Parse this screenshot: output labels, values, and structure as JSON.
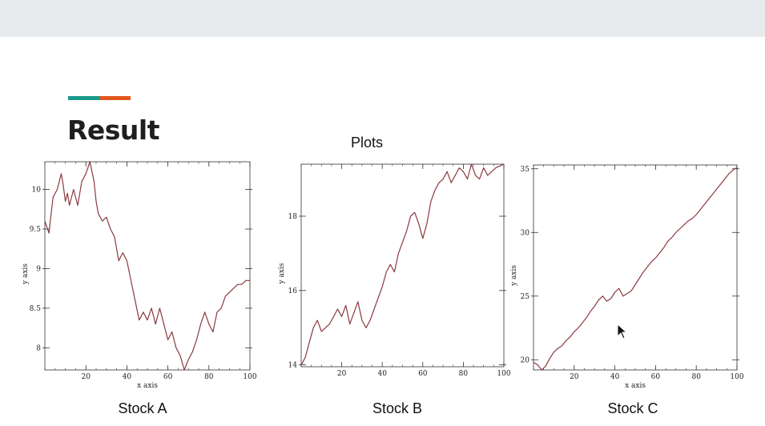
{
  "page": {
    "heading": "Result",
    "plots_title": "Plots",
    "accent_colors": [
      "#1a9a8a",
      "#e2561f"
    ],
    "line_color": "#8b3a3f"
  },
  "charts": [
    {
      "caption": "Stock A",
      "chart_data": {
        "type": "line",
        "xlabel": "x axis",
        "ylabel": "y axis",
        "xlim": [
          0,
          100
        ],
        "ylim": [
          7.72,
          10.35
        ],
        "xticks": [
          20,
          40,
          60,
          80,
          100
        ],
        "yticks": [
          8,
          8.5,
          9,
          9.5,
          10
        ],
        "ytick_labels": [
          "8",
          "8.5",
          "9",
          "9.5",
          "10"
        ],
        "x": [
          0,
          2,
          4,
          6,
          8,
          9,
          10,
          11,
          12,
          14,
          16,
          18,
          20,
          22,
          24,
          25,
          26,
          28,
          30,
          32,
          34,
          36,
          38,
          40,
          42,
          44,
          46,
          48,
          50,
          52,
          54,
          56,
          58,
          60,
          62,
          64,
          66,
          68,
          70,
          72,
          74,
          76,
          78,
          80,
          82,
          84,
          86,
          88,
          90,
          92,
          94,
          96,
          98,
          100
        ],
        "y": [
          9.6,
          9.45,
          9.9,
          10.0,
          10.2,
          10.05,
          9.85,
          9.95,
          9.8,
          10.0,
          9.8,
          10.1,
          10.2,
          10.35,
          10.1,
          9.85,
          9.7,
          9.6,
          9.65,
          9.5,
          9.4,
          9.1,
          9.2,
          9.1,
          8.85,
          8.6,
          8.35,
          8.45,
          8.35,
          8.5,
          8.3,
          8.5,
          8.3,
          8.1,
          8.2,
          8.0,
          7.9,
          7.72,
          7.85,
          7.95,
          8.1,
          8.3,
          8.45,
          8.3,
          8.2,
          8.45,
          8.5,
          8.65,
          8.7,
          8.75,
          8.8,
          8.8,
          8.85,
          8.85
        ],
        "grid": false
      }
    },
    {
      "caption": "Stock B",
      "chart_data": {
        "type": "line",
        "xlabel": "",
        "ylabel": "y axis",
        "xlim": [
          0,
          100
        ],
        "ylim": [
          13.95,
          19.4
        ],
        "xticks": [
          20,
          40,
          60,
          80,
          100
        ],
        "yticks": [
          14,
          16,
          18
        ],
        "ytick_labels": [
          "14",
          "16",
          "18"
        ],
        "x": [
          0,
          2,
          4,
          6,
          8,
          10,
          12,
          14,
          16,
          18,
          20,
          22,
          24,
          26,
          28,
          30,
          32,
          34,
          36,
          38,
          40,
          42,
          44,
          46,
          48,
          50,
          52,
          54,
          56,
          58,
          60,
          62,
          64,
          66,
          68,
          70,
          72,
          74,
          76,
          78,
          80,
          82,
          84,
          86,
          88,
          90,
          92,
          94,
          96,
          98,
          100
        ],
        "y": [
          14.0,
          14.2,
          14.6,
          15.0,
          15.2,
          14.9,
          15.0,
          15.1,
          15.3,
          15.5,
          15.3,
          15.6,
          15.1,
          15.4,
          15.7,
          15.2,
          15.0,
          15.2,
          15.5,
          15.8,
          16.1,
          16.5,
          16.7,
          16.5,
          17.0,
          17.3,
          17.6,
          18.0,
          18.1,
          17.8,
          17.4,
          17.8,
          18.4,
          18.7,
          18.9,
          19.0,
          19.2,
          18.9,
          19.1,
          19.3,
          19.2,
          19.0,
          19.4,
          19.1,
          19.0,
          19.3,
          19.1,
          19.2,
          19.3,
          19.35,
          19.4
        ],
        "grid": false
      }
    },
    {
      "caption": "Stock C",
      "chart_data": {
        "type": "line",
        "xlabel": "x axis",
        "ylabel": "y axis",
        "xlim": [
          0,
          100
        ],
        "ylim": [
          19.2,
          35.3
        ],
        "xticks": [
          20,
          40,
          60,
          80,
          100
        ],
        "yticks": [
          20,
          25,
          30,
          35
        ],
        "ytick_labels": [
          "20",
          "25",
          "30",
          "35"
        ],
        "x": [
          0,
          2,
          4,
          6,
          8,
          10,
          12,
          14,
          16,
          18,
          20,
          22,
          24,
          26,
          28,
          30,
          32,
          34,
          36,
          38,
          40,
          42,
          44,
          46,
          48,
          50,
          52,
          54,
          56,
          58,
          60,
          62,
          64,
          66,
          68,
          70,
          72,
          74,
          76,
          78,
          80,
          82,
          84,
          86,
          88,
          90,
          92,
          94,
          96,
          98,
          100
        ],
        "y": [
          19.8,
          19.6,
          19.2,
          19.5,
          20.1,
          20.6,
          20.9,
          21.1,
          21.5,
          21.8,
          22.2,
          22.5,
          22.9,
          23.3,
          23.8,
          24.2,
          24.7,
          25.0,
          24.6,
          24.8,
          25.3,
          25.6,
          25.0,
          25.2,
          25.4,
          25.9,
          26.4,
          26.9,
          27.3,
          27.7,
          28.0,
          28.4,
          28.8,
          29.3,
          29.6,
          30.0,
          30.3,
          30.6,
          30.9,
          31.1,
          31.4,
          31.8,
          32.2,
          32.6,
          33.0,
          33.4,
          33.8,
          34.2,
          34.6,
          34.9,
          35.1
        ],
        "grid": false
      }
    }
  ]
}
